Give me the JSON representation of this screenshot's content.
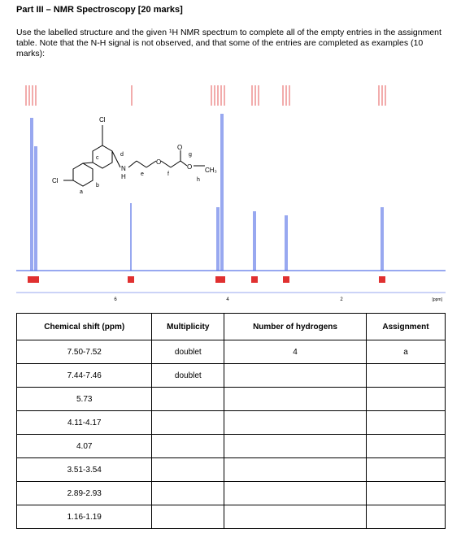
{
  "header": {
    "title": "Part III – NMR Spectroscopy [20 marks]"
  },
  "instructions": "Use the labelled structure and the given ¹H NMR spectrum to complete all of the empty entries in the assignment table. Note that the N-H signal is not observed, and that some of the entries are completed as examples (10 marks):",
  "spectrum": {
    "axis_labels": [
      "6",
      "4",
      "2"
    ],
    "unit": "[ppm]",
    "structure_labels": {
      "cl_top": "Cl",
      "cl_left": "Cl",
      "a": "a",
      "b": "b",
      "c": "c",
      "d": "d",
      "e": "e",
      "f": "f",
      "g": "g",
      "h": "h",
      "n": "N",
      "h_atom": "H",
      "o1": "O",
      "o2": "O",
      "o3": "O",
      "ch3": "CH₃"
    }
  },
  "table": {
    "headers": [
      "Chemical shift (ppm)",
      "Multiplicity",
      "Number of hydrogens",
      "Assignment"
    ],
    "rows": [
      [
        "7.50-7.52",
        "doublet",
        "4",
        "a"
      ],
      [
        "7.44-7.46",
        "doublet",
        null,
        null
      ],
      [
        "5.73",
        null,
        null,
        null
      ],
      [
        "4.11-4.17",
        null,
        null,
        null
      ],
      [
        "4.07",
        null,
        null,
        null
      ],
      [
        "3.51-3.54",
        null,
        null,
        null
      ],
      [
        "2.89-2.93",
        null,
        null,
        null
      ],
      [
        "1.16-1.19",
        null,
        null,
        null
      ]
    ]
  }
}
